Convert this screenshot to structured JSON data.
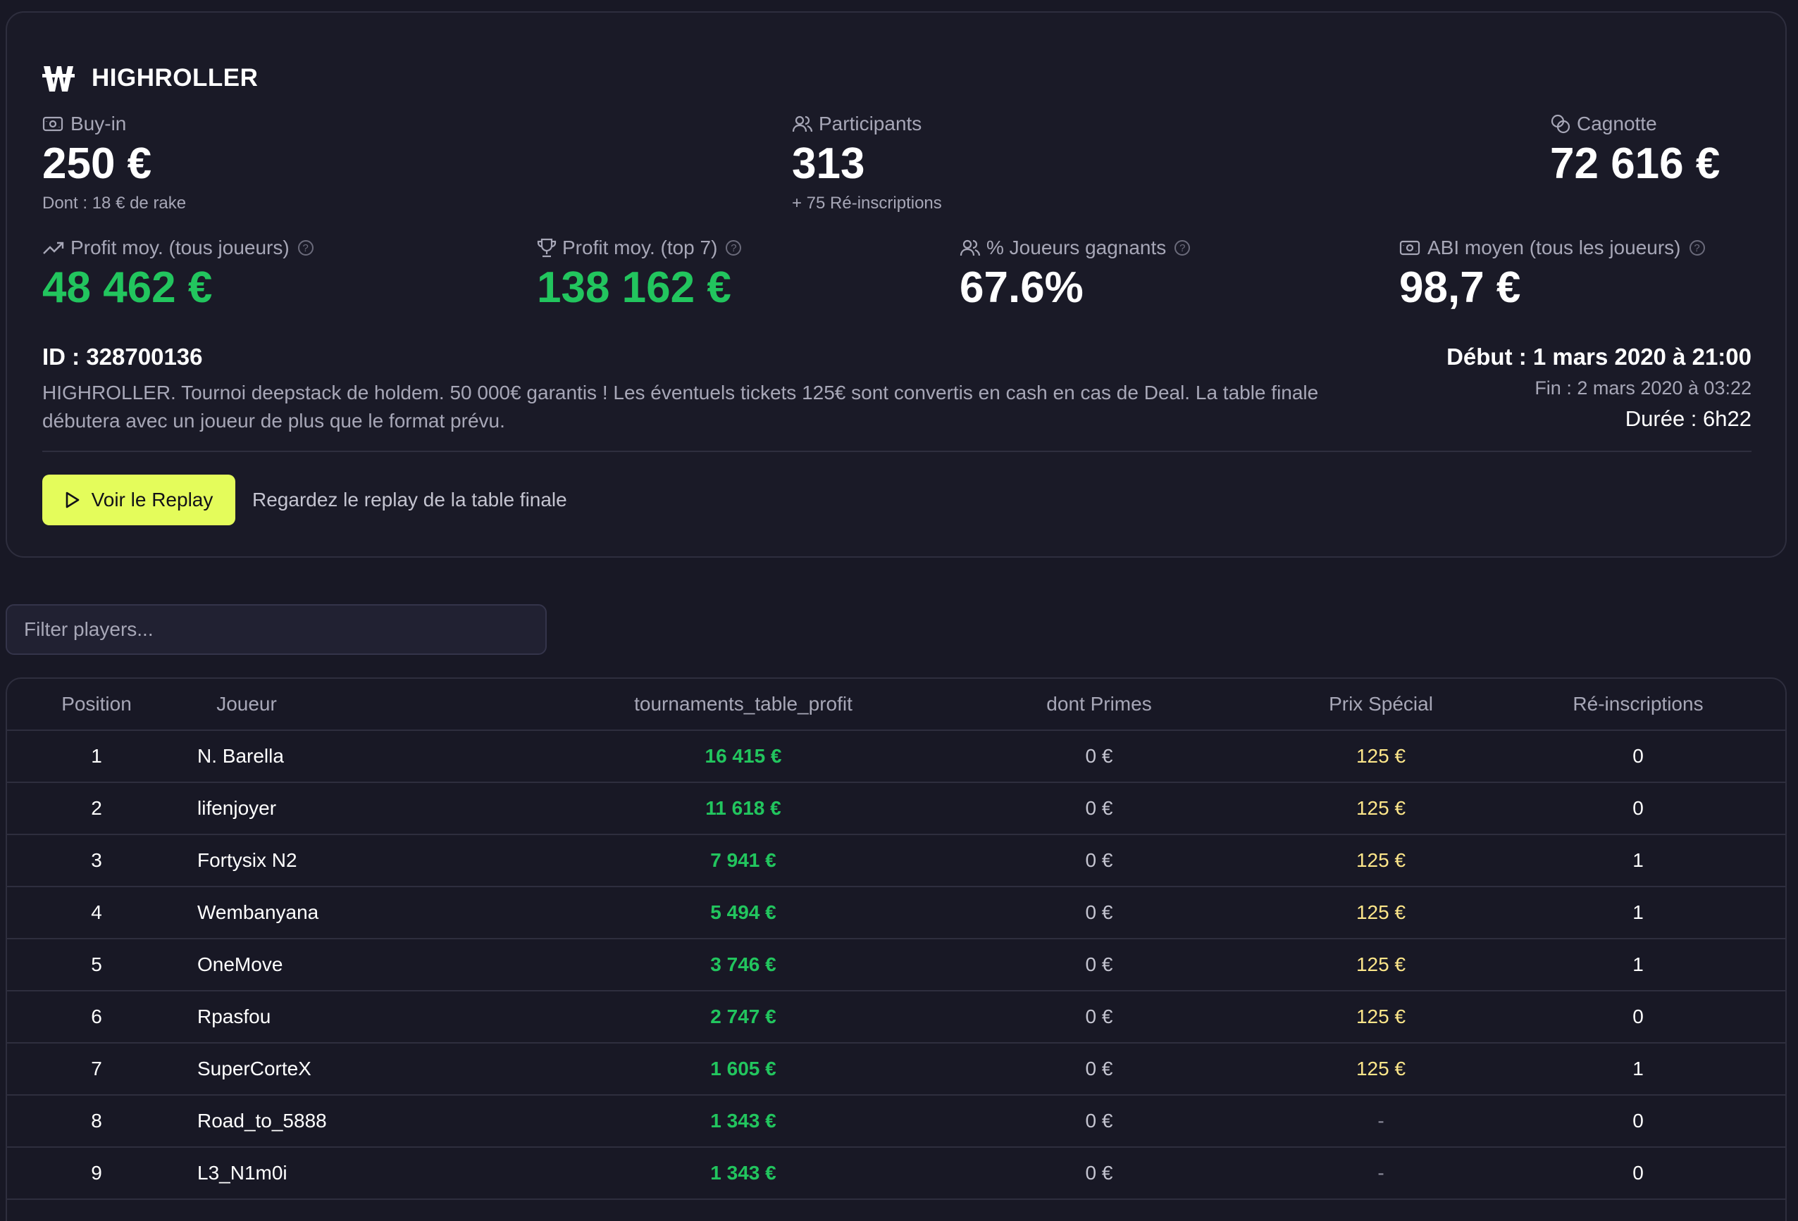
{
  "tournament": {
    "name": "HIGHROLLER",
    "buyin": {
      "label": "Buy-in",
      "value": "250 €",
      "sub": "Dont : 18 € de rake"
    },
    "participants": {
      "label": "Participants",
      "value": "313",
      "sub": "+ 75 Ré-inscriptions"
    },
    "cagnotte": {
      "label": "Cagnotte",
      "value": "72 616 €"
    },
    "profit_all": {
      "label": "Profit moy. (tous joueurs)",
      "value": "48 462 €"
    },
    "profit_top": {
      "label": "Profit moy. (top 7)",
      "value": "138 162 €"
    },
    "winners": {
      "label": "% Joueurs gagnants",
      "value": "67.6%"
    },
    "abi": {
      "label": "ABI moyen (tous les joueurs)",
      "value": "98,7 €"
    },
    "id_text": "ID : 328700136",
    "description": "HIGHROLLER. Tournoi deepstack de holdem. 50 000€ garantis ! Les éventuels tickets 125€ sont convertis en cash en cas de Deal. La table finale débutera avec un joueur de plus que le format prévu.",
    "debut": "Début : 1 mars 2020 à 21:00",
    "fin": "Fin : 2 mars 2020 à 03:22",
    "duree": "Durée : 6h22",
    "replay_button": "Voir le Replay",
    "replay_hint": "Regardez le replay de la table finale",
    "help_glyph": "?"
  },
  "filter": {
    "placeholder": "Filter players..."
  },
  "table": {
    "headers": [
      "Position",
      "Joueur",
      "tournaments_table_profit",
      "dont Primes",
      "Prix Spécial",
      "Ré-inscriptions"
    ],
    "rows": [
      {
        "position": "1",
        "player": "N. Barella",
        "profit": "16 415 €",
        "primes": "0 €",
        "prix": "125 €",
        "reins": "0"
      },
      {
        "position": "2",
        "player": "lifenjoyer",
        "profit": "11 618 €",
        "primes": "0 €",
        "prix": "125 €",
        "reins": "0"
      },
      {
        "position": "3",
        "player": "Fortysix N2",
        "profit": "7 941 €",
        "primes": "0 €",
        "prix": "125 €",
        "reins": "1"
      },
      {
        "position": "4",
        "player": "Wembanyana",
        "profit": "5 494 €",
        "primes": "0 €",
        "prix": "125 €",
        "reins": "1"
      },
      {
        "position": "5",
        "player": "OneMove",
        "profit": "3 746 €",
        "primes": "0 €",
        "prix": "125 €",
        "reins": "1"
      },
      {
        "position": "6",
        "player": "Rpasfou",
        "profit": "2 747 €",
        "primes": "0 €",
        "prix": "125 €",
        "reins": "0"
      },
      {
        "position": "7",
        "player": "SuperCorteX",
        "profit": "1 605 €",
        "primes": "0 €",
        "prix": "125 €",
        "reins": "1"
      },
      {
        "position": "8",
        "player": "Road_to_5888",
        "profit": "1 343 €",
        "primes": "0 €",
        "prix": "-",
        "reins": "0"
      },
      {
        "position": "9",
        "player": "L3_N1m0i",
        "profit": "1 343 €",
        "primes": "0 €",
        "prix": "-",
        "reins": "0"
      }
    ]
  },
  "colors": {
    "background": "#181825",
    "accent_button": "#e4fc5b",
    "profit_green": "#22c55e",
    "special_prize_yellow": "#fde68a"
  },
  "icons": {
    "brand": "winamax-w-logo",
    "buyin": "ticket-euro-icon",
    "participants": "users-icon",
    "cagnotte": "coins-icon",
    "profit_all": "trending-up-icon",
    "profit_top": "trophy-icon",
    "winners": "users-icon",
    "abi": "ticket-euro-icon",
    "help": "help-circle-icon",
    "replay": "play-icon"
  }
}
